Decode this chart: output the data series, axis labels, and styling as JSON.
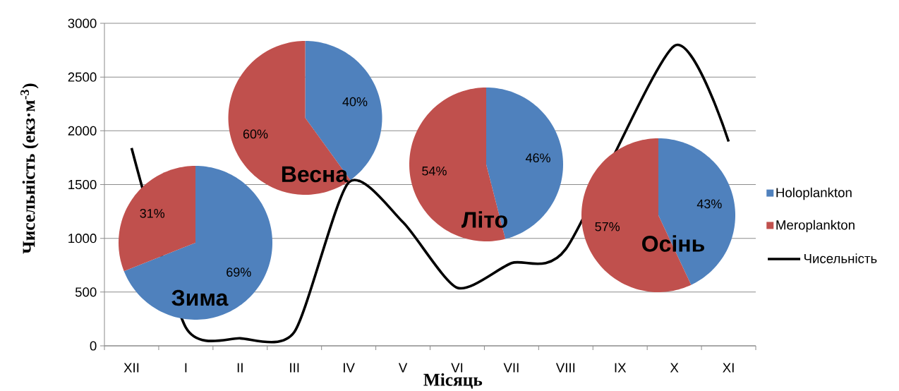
{
  "chart_data": [
    {
      "type": "line",
      "categories": [
        "XII",
        "I",
        "II",
        "III",
        "IV",
        "V",
        "VI",
        "VII",
        "VIII",
        "IX",
        "X",
        "XI"
      ],
      "xlabel": "Місяць",
      "ylabel": "Чисельність (екз·м$^{-3}$)",
      "ylim": [
        0,
        3000
      ],
      "yticks": [
        0,
        500,
        1000,
        1500,
        2000,
        2500,
        3000
      ],
      "grid": "y",
      "legend": "right",
      "line_style": "solid",
      "series": [
        {
          "name": "Чисельність",
          "color": "#000000",
          "values": [
            1840,
            170,
            70,
            130,
            1520,
            1150,
            540,
            770,
            900,
            null,
            2790,
            1900
          ]
        }
      ]
    },
    {
      "type": "pie",
      "title": "Зима",
      "categories": [
        "Holoplankton",
        "Meroplankton"
      ],
      "values": [
        69,
        31
      ],
      "colors": [
        "#4f81bd",
        "#c0504d"
      ],
      "value_labels": [
        "69%",
        "31%"
      ],
      "legend": "right"
    },
    {
      "type": "pie",
      "title": "Весна",
      "categories": [
        null,
        null
      ],
      "values": [
        40,
        60
      ],
      "colors": [
        "#4f81bd",
        "#c0504d"
      ],
      "value_labels": [
        "40%",
        "60%"
      ]
    },
    {
      "type": "pie",
      "title": "Літо",
      "categories": [
        null,
        null
      ],
      "values": [
        46,
        54
      ],
      "colors": [
        "#4f81bd",
        "#c0504d"
      ],
      "value_labels": [
        "46%",
        "54%"
      ]
    },
    {
      "type": "pie",
      "title": "Осінь",
      "categories": [
        null,
        null
      ],
      "values": [
        43,
        57
      ],
      "colors": [
        "#4f81bd",
        "#c0504d"
      ],
      "value_labels": [
        "43%",
        "57%"
      ]
    }
  ]
}
